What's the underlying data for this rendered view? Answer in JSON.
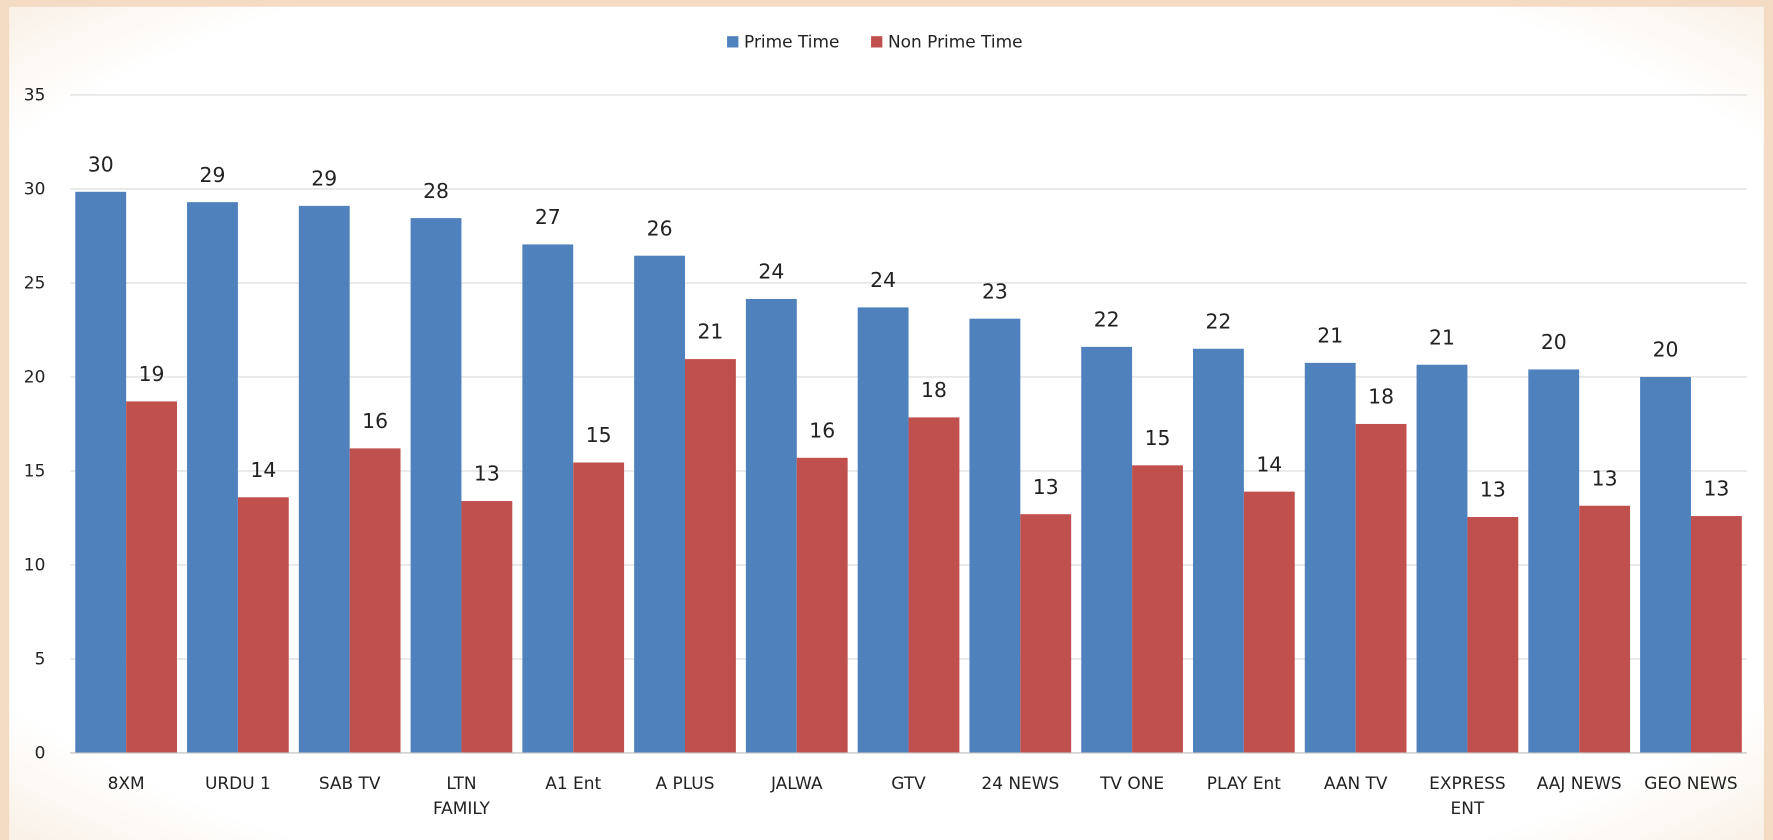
{
  "chart_data": {
    "type": "bar",
    "categories": [
      "8XM",
      "URDU 1",
      "SAB TV",
      "LTN\nFAMILY",
      "A1 Ent",
      "A PLUS",
      "JALWA",
      "GTV",
      "24 NEWS",
      "TV ONE",
      "PLAY Ent",
      "AAN TV",
      "EXPRESS\nENT",
      "AAJ NEWS",
      "GEO NEWS"
    ],
    "series": [
      {
        "name": "Prime Time",
        "color": "#4f81bd",
        "values": [
          29.85,
          29.3,
          29.1,
          28.45,
          27.05,
          26.45,
          24.15,
          23.7,
          23.1,
          21.6,
          21.5,
          20.75,
          20.65,
          20.4,
          20.0
        ],
        "value_labels": [
          "30",
          "29",
          "29",
          "28",
          "27",
          "26",
          "24",
          "24",
          "23",
          "22",
          "22",
          "21",
          "21",
          "20",
          "20"
        ]
      },
      {
        "name": "Non Prime Time",
        "color": "#c0504d",
        "values": [
          18.7,
          13.6,
          16.2,
          13.4,
          15.45,
          20.95,
          15.7,
          17.85,
          12.7,
          15.3,
          13.9,
          17.5,
          12.55,
          13.15,
          12.6
        ],
        "value_labels": [
          "19",
          "14",
          "16",
          "13",
          "15",
          "21",
          "16",
          "18",
          "13",
          "15",
          "14",
          "18",
          "13",
          "13",
          "13"
        ]
      }
    ],
    "ylim": [
      0,
      35
    ],
    "yticks": [
      0,
      5,
      10,
      15,
      20,
      25,
      30,
      35
    ],
    "grid": true,
    "legend": "top"
  }
}
